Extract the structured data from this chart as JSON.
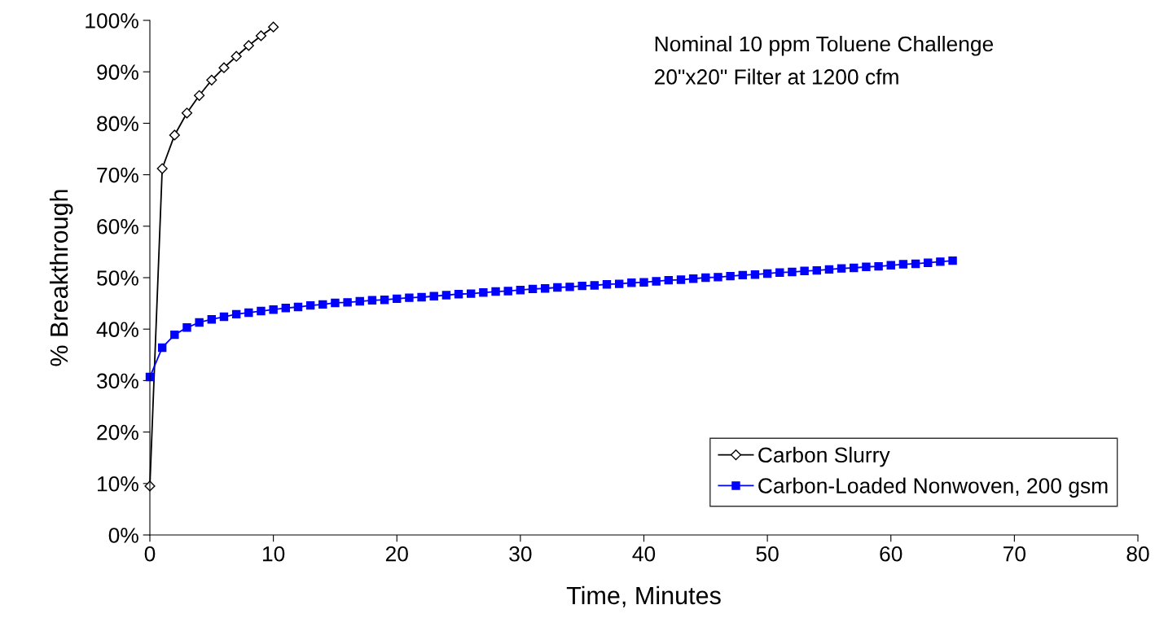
{
  "chart_data": {
    "type": "line",
    "xlabel": "Time, Minutes",
    "ylabel": "% Breakthrough",
    "xlim": [
      0,
      80
    ],
    "xticks": [
      0,
      10,
      20,
      30,
      40,
      50,
      60,
      70,
      80
    ],
    "ylim": [
      0,
      100
    ],
    "yticks": [
      {
        "value": 0,
        "label": "0%"
      },
      {
        "value": 10,
        "label": "10%"
      },
      {
        "value": 20,
        "label": "20%"
      },
      {
        "value": 30,
        "label": "30%"
      },
      {
        "value": 40,
        "label": "40%"
      },
      {
        "value": 50,
        "label": "50%"
      },
      {
        "value": 60,
        "label": "60%"
      },
      {
        "value": 70,
        "label": "70%"
      },
      {
        "value": 80,
        "label": "80%"
      },
      {
        "value": 90,
        "label": "90%"
      },
      {
        "value": 100,
        "label": "100%"
      }
    ],
    "grid": false,
    "legend": "bottom right",
    "line_style": "solid",
    "annotations": [
      "Nominal 10 ppm Toluene Challenge",
      "20\"x20\" Filter at 1200 cfm"
    ],
    "series": [
      {
        "name": "Carbon Slurry",
        "color": "#000000",
        "marker": "diamond",
        "x": [
          0,
          1,
          2,
          3,
          4,
          5,
          6,
          7,
          8,
          9,
          10
        ],
        "values": [
          9.5,
          71.2,
          77.7,
          82.0,
          85.4,
          88.4,
          90.8,
          93.0,
          95.1,
          97.0,
          98.7
        ]
      },
      {
        "name": "Carbon-Loaded Nonwoven, 200 gsm",
        "color": "#0000ff",
        "marker": "square",
        "x": [
          0,
          1,
          2,
          3,
          4,
          5,
          6,
          7,
          8,
          9,
          10,
          11,
          12,
          13,
          14,
          15,
          16,
          17,
          18,
          19,
          20,
          21,
          22,
          23,
          24,
          25,
          26,
          27,
          28,
          29,
          30,
          31,
          32,
          33,
          34,
          35,
          36,
          37,
          38,
          39,
          40,
          41,
          42,
          43,
          44,
          45,
          46,
          47,
          48,
          49,
          50,
          51,
          52,
          53,
          54,
          55,
          56,
          57,
          58,
          59,
          60,
          61,
          62,
          63,
          64,
          65
        ],
        "values": [
          30.7,
          36.4,
          38.9,
          40.3,
          41.3,
          41.9,
          42.4,
          42.9,
          43.2,
          43.5,
          43.8,
          44.1,
          44.3,
          44.6,
          44.8,
          45.1,
          45.2,
          45.4,
          45.6,
          45.7,
          45.9,
          46.1,
          46.2,
          46.4,
          46.6,
          46.8,
          46.9,
          47.1,
          47.3,
          47.4,
          47.6,
          47.8,
          47.9,
          48.1,
          48.2,
          48.4,
          48.5,
          48.7,
          48.8,
          49.0,
          49.1,
          49.3,
          49.5,
          49.6,
          49.8,
          50.0,
          50.1,
          50.3,
          50.5,
          50.6,
          50.8,
          51.0,
          51.1,
          51.3,
          51.4,
          51.6,
          51.8,
          51.9,
          52.1,
          52.2,
          52.4,
          52.6,
          52.7,
          52.9,
          53.1,
          53.3
        ]
      }
    ]
  }
}
